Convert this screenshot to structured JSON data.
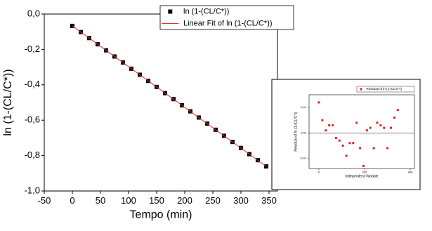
{
  "chart_data": [
    {
      "type": "scatter",
      "xlabel": "Tempo (min)",
      "ylabel": "ln (1-(CL/C*))",
      "xlim": [
        -50,
        365
      ],
      "ylim": [
        -1.0,
        0.0
      ],
      "xticks": [
        -50,
        0,
        50,
        100,
        150,
        200,
        250,
        300,
        350
      ],
      "yticks": [
        {
          "value": -1.0,
          "label": "-1,0"
        },
        {
          "value": -0.8,
          "label": "-0,8"
        },
        {
          "value": -0.6,
          "label": "-0,6"
        },
        {
          "value": -0.4,
          "label": "-0,4"
        },
        {
          "value": -0.2,
          "label": "-0,2"
        },
        {
          "value": 0.0,
          "label": "0,0"
        }
      ],
      "series": [
        {
          "name": "ln (1-(CL/C*))",
          "kind": "points",
          "color": "#000000",
          "x": [
            0,
            15,
            30,
            45,
            60,
            75,
            90,
            105,
            120,
            135,
            150,
            165,
            180,
            195,
            210,
            225,
            240,
            255,
            270,
            285,
            300,
            315,
            330,
            345
          ],
          "values": [
            -0.067,
            -0.102,
            -0.136,
            -0.171,
            -0.205,
            -0.24,
            -0.274,
            -0.309,
            -0.343,
            -0.378,
            -0.412,
            -0.447,
            -0.481,
            -0.516,
            -0.55,
            -0.585,
            -0.619,
            -0.654,
            -0.688,
            -0.723,
            -0.757,
            -0.792,
            -0.826,
            -0.861
          ]
        },
        {
          "name": "Linear Fit of ln (1-(CL/C*))",
          "kind": "line",
          "color": "#e03030",
          "x": [
            0,
            345
          ],
          "values": [
            -0.067,
            -0.861
          ]
        }
      ]
    },
    {
      "type": "scatter",
      "xlabel": "Independent Variable",
      "ylabel": "Residual of ln (1-(CL/C*))",
      "xlim": [
        -43,
        418
      ],
      "ylim": [
        -0.014,
        0.015
      ],
      "xticks": [
        0,
        200,
        400
      ],
      "yticks": [
        {
          "value": -0.01,
          "label": "-0,01"
        },
        {
          "value": 0.0,
          "label": "0,00"
        },
        {
          "value": 0.01,
          "label": "0,01"
        }
      ],
      "zero_line": true,
      "series": [
        {
          "name": "Residual of ln (1-(CL/C*))",
          "kind": "points",
          "color": "#e02020",
          "x": [
            0,
            15,
            30,
            45,
            60,
            75,
            90,
            105,
            120,
            135,
            150,
            165,
            180,
            195,
            210,
            225,
            240,
            255,
            270,
            285,
            300,
            315,
            330,
            345
          ],
          "values": [
            0.012,
            0.005,
            0.001,
            0.003,
            0.003,
            -0.002,
            -0.003,
            -0.005,
            -0.009,
            -0.004,
            -0.004,
            0.004,
            -0.006,
            -0.013,
            0.001,
            0.002,
            -0.006,
            0.004,
            0.003,
            0.002,
            -0.006,
            0.002,
            0.006,
            0.009
          ]
        }
      ]
    }
  ]
}
